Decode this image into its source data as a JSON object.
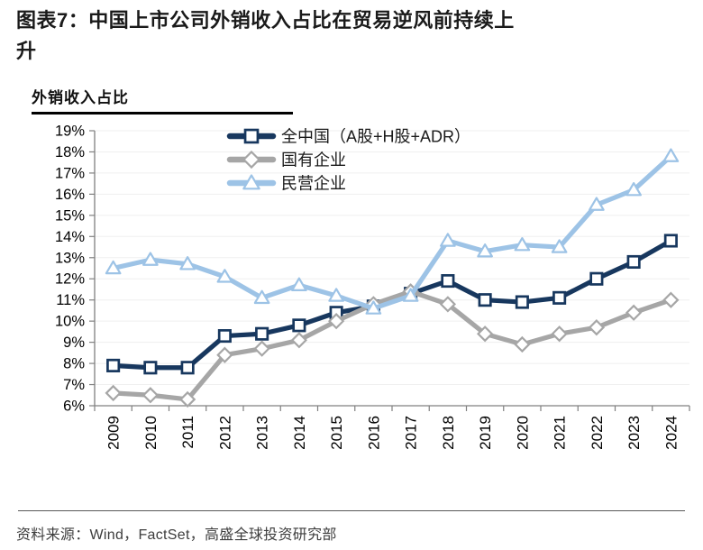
{
  "figure": {
    "title": "图表7：中国上市公司外销收入占比在贸易逆风前持续上升",
    "subtitle": "外销收入占比",
    "source": "资料来源：Wind，FactSet，高盛全球投资研究部"
  },
  "chart_data": {
    "type": "line",
    "title": "外销收入占比",
    "categories": [
      "2009",
      "2010",
      "2011",
      "2012",
      "2013",
      "2014",
      "2015",
      "2016",
      "2017",
      "2018",
      "2019",
      "2020",
      "2021",
      "2022",
      "2023",
      "2024"
    ],
    "series": [
      {
        "name": "全中国（A股+H股+ADR）",
        "marker": "square",
        "color": "#17375E",
        "values": [
          7.9,
          7.8,
          7.8,
          9.3,
          9.4,
          9.8,
          10.4,
          10.7,
          11.3,
          11.9,
          11.0,
          10.9,
          11.1,
          12.0,
          12.8,
          13.8
        ]
      },
      {
        "name": "国有企业",
        "marker": "diamond",
        "color": "#A6A6A6",
        "values": [
          6.6,
          6.5,
          6.3,
          8.4,
          8.7,
          9.1,
          10.0,
          10.8,
          11.4,
          10.8,
          9.4,
          8.9,
          9.4,
          9.7,
          10.4,
          11.0
        ]
      },
      {
        "name": "民营企业",
        "marker": "triangle",
        "color": "#9DC3E6",
        "values": [
          12.5,
          12.9,
          12.7,
          12.1,
          11.1,
          11.7,
          11.2,
          10.6,
          11.2,
          13.8,
          13.3,
          13.6,
          13.5,
          15.5,
          16.2,
          17.8
        ]
      }
    ],
    "ylim": [
      6,
      19
    ],
    "y_tick_labels": [
      "6%",
      "7%",
      "8%",
      "9%",
      "10%",
      "11%",
      "12%",
      "13%",
      "14%",
      "15%",
      "16%",
      "17%",
      "18%",
      "19%"
    ],
    "grid": "horizontal",
    "legend_position": "top-center",
    "x_labels_rotated_deg": 90
  },
  "colors": {
    "axis": "#808080",
    "gridline": "#EFEFEF",
    "tick_text": "#000000",
    "legend_text": "#1a1a1a",
    "marker_fill": "#FFFFFF"
  }
}
